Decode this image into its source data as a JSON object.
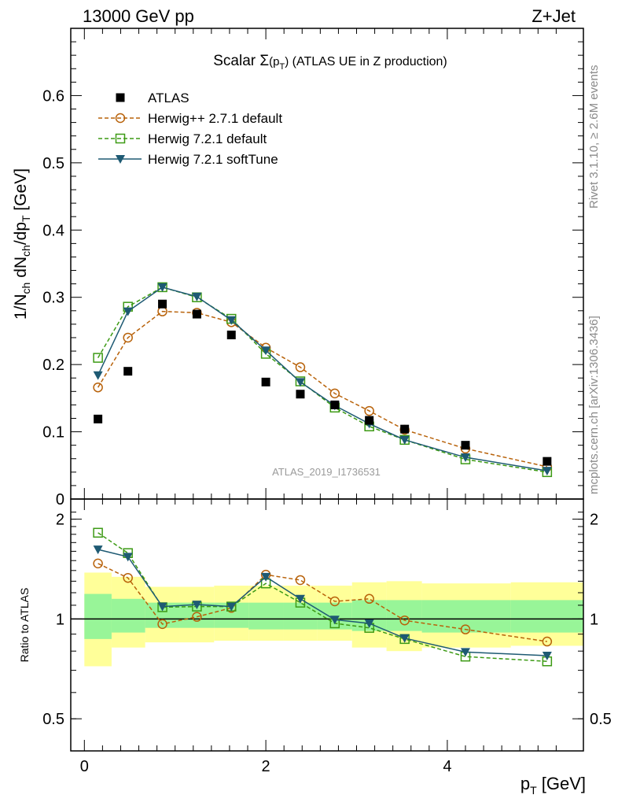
{
  "header": {
    "left": "13000 GeV pp",
    "right": "Z+Jet"
  },
  "side_labels": {
    "rivet": "Rivet 3.1.10, ≥ 2.6M events",
    "mcplots": "mcplots.cern.ch [arXiv:1306.3436]"
  },
  "watermark": "ATLAS_2019_I1736531",
  "chart_data": [
    {
      "type": "scatter",
      "panel": "main",
      "title": "Scalar Σ(p_T) (ATLAS UE in Z production)",
      "title_parts": {
        "prefix": "Scalar ",
        "sigma": "Σ",
        "open": "(p",
        "sub": "T",
        "close": ")",
        "suffix": " (ATLAS UE in Z production)"
      },
      "ylabel": "1/N_ch dN_ch/dp_T [GeV]",
      "xlim": [
        -0.15,
        5.5
      ],
      "ylim": [
        0,
        0.7
      ],
      "yticks": [
        0,
        0.1,
        0.2,
        0.3,
        0.4,
        0.5,
        0.6
      ],
      "ytick_labels": [
        "0",
        "0.1",
        "0.2",
        "0.3",
        "0.4",
        "0.5",
        "0.6"
      ],
      "legend_position": "top-left",
      "x": [
        0.15,
        0.48,
        0.86,
        1.24,
        1.62,
        2.0,
        2.38,
        2.76,
        3.14,
        3.53,
        4.2,
        5.1
      ],
      "series": [
        {
          "name": "ATLAS",
          "color": "#000000",
          "marker": "filled-square",
          "line": "none",
          "values": [
            0.119,
            0.19,
            0.29,
            0.275,
            0.244,
            0.174,
            0.156,
            0.14,
            0.117,
            0.104,
            0.08,
            0.056
          ]
        },
        {
          "name": "Herwig++ 2.7.1 default",
          "color": "#b8620a",
          "marker": "open-circle",
          "line": "dashed",
          "values": [
            0.166,
            0.24,
            0.279,
            0.277,
            0.263,
            0.225,
            0.196,
            0.157,
            0.131,
            0.103,
            0.075,
            0.048
          ]
        },
        {
          "name": "Herwig 7.2.1 default",
          "color": "#3c9a14",
          "marker": "open-square",
          "line": "dashed",
          "values": [
            0.21,
            0.286,
            0.315,
            0.3,
            0.268,
            0.216,
            0.175,
            0.136,
            0.108,
            0.088,
            0.059,
            0.04
          ]
        },
        {
          "name": "Herwig 7.2.1 softTune",
          "color": "#1e5a73",
          "marker": "filled-triangle-down",
          "line": "solid",
          "values": [
            0.184,
            0.279,
            0.315,
            0.301,
            0.266,
            0.221,
            0.174,
            0.139,
            0.112,
            0.088,
            0.062,
            0.042
          ]
        }
      ]
    },
    {
      "type": "line",
      "panel": "ratio",
      "ylabel": "Ratio to ATLAS",
      "xlabel": "p_T [GeV]",
      "xlabel_parts": {
        "p": "p",
        "sub": "T",
        "unit": " [GeV]"
      },
      "xlim": [
        -0.15,
        5.5
      ],
      "ylim": [
        0.4,
        2.3
      ],
      "yticks": [
        0.5,
        1,
        2
      ],
      "ytick_labels": [
        "0.5",
        "1",
        "2"
      ],
      "xticks": [
        0,
        2,
        4
      ],
      "xtick_labels": [
        "0",
        "2",
        "4"
      ],
      "bin_edges": [
        0.0,
        0.3,
        0.67,
        1.05,
        1.43,
        1.81,
        2.19,
        2.57,
        2.95,
        3.33,
        3.72,
        4.7,
        5.5
      ],
      "band_inner": {
        "color": "#98f598",
        "lo": [
          0.87,
          0.91,
          0.94,
          0.94,
          0.94,
          0.93,
          0.93,
          0.93,
          0.92,
          0.92,
          0.91,
          0.91
        ],
        "hi": [
          1.19,
          1.15,
          1.12,
          1.12,
          1.12,
          1.12,
          1.12,
          1.12,
          1.14,
          1.14,
          1.14,
          1.14
        ]
      },
      "band_outer": {
        "color": "#ffff99",
        "lo": [
          0.72,
          0.82,
          0.85,
          0.85,
          0.86,
          0.86,
          0.86,
          0.86,
          0.82,
          0.8,
          0.82,
          0.83
        ],
        "hi": [
          1.38,
          1.34,
          1.25,
          1.25,
          1.26,
          1.26,
          1.26,
          1.26,
          1.29,
          1.3,
          1.28,
          1.29
        ]
      },
      "series": [
        {
          "name": "Herwig++ 2.7.1 default",
          "color": "#b8620a",
          "marker": "open-circle",
          "line": "dashed",
          "values": [
            1.47,
            1.33,
            0.965,
            1.015,
            1.08,
            1.36,
            1.31,
            1.13,
            1.15,
            0.99,
            0.93,
            0.855
          ]
        },
        {
          "name": "Herwig 7.2.1 default",
          "color": "#3c9a14",
          "marker": "open-square",
          "line": "dashed",
          "values": [
            1.82,
            1.58,
            1.085,
            1.09,
            1.09,
            1.28,
            1.12,
            0.97,
            0.94,
            0.87,
            0.77,
            0.745
          ]
        },
        {
          "name": "Herwig 7.2.1 softTune",
          "color": "#1e5a73",
          "marker": "filled-triangle-down",
          "line": "solid",
          "values": [
            1.62,
            1.54,
            1.09,
            1.105,
            1.09,
            1.34,
            1.15,
            0.995,
            0.97,
            0.875,
            0.795,
            0.775
          ]
        }
      ]
    }
  ]
}
